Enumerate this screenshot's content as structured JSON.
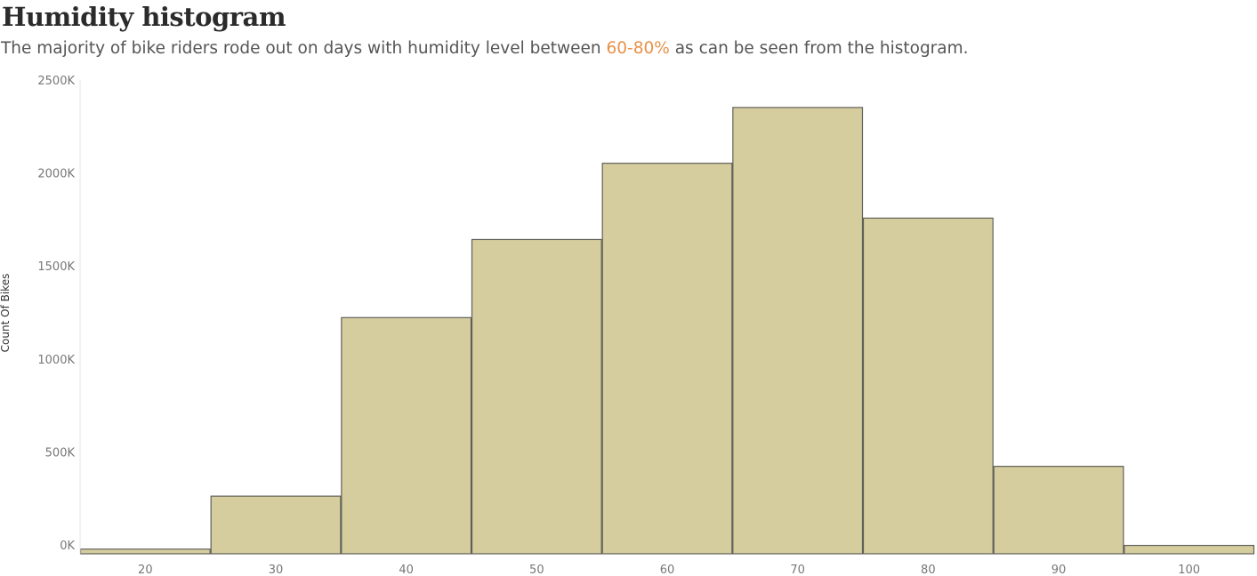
{
  "header": {
    "title": "Humidity histogram",
    "subtitle_before": "The majority of bike riders rode out on days with humidity level between ",
    "subtitle_highlight": "60-80%",
    "subtitle_after": " as can be seen from the histogram."
  },
  "colors": {
    "bar_fill": "#d6cd9e",
    "bar_stroke": "#5f5f5a",
    "highlight": "#e8924a",
    "axis": "#e6e6e6"
  },
  "chart_data": {
    "type": "bar",
    "title": "Humidity histogram",
    "xlabel": "",
    "ylabel": "Count Of Bikes",
    "categories": [
      "20",
      "30",
      "40",
      "50",
      "60",
      "70",
      "80",
      "90",
      "100"
    ],
    "values": [
      25,
      310,
      1270,
      1690,
      2100,
      2400,
      1805,
      470,
      45
    ],
    "y_ticks": [
      0,
      500,
      1000,
      1500,
      2000,
      2500
    ],
    "y_tick_labels": [
      "0K",
      "500K",
      "1000K",
      "1500K",
      "2000K",
      "2500K"
    ],
    "ylim": [
      0,
      2500
    ],
    "grid": false,
    "legend": "none"
  }
}
